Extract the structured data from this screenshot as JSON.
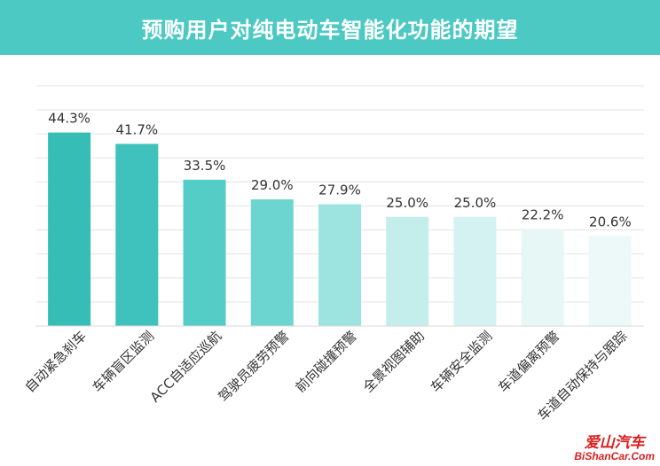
{
  "title": "预购用户对纯电动车智能化功能的期望",
  "watermark": {
    "cn": "爱山汽车",
    "en": "BiShanCar.Com"
  },
  "chart_data": {
    "type": "bar",
    "categories": [
      "自动紧急刹车",
      "车辆盲区监测",
      "ACC自适应巡航",
      "驾驶员疲劳预警",
      "前向碰撞预警",
      "全景视图辅助",
      "车辆安全监测",
      "车道偏离预警",
      "车道自动保持与跟踪"
    ],
    "values": [
      44.3,
      41.7,
      33.5,
      29.0,
      27.9,
      25.0,
      25.0,
      22.2,
      20.6
    ],
    "data_labels": [
      "44.3%",
      "41.7%",
      "33.5%",
      "29.0%",
      "27.9%",
      "25.0%",
      "25.0%",
      "22.2%",
      "20.6%"
    ],
    "colors": [
      "#35bdb6",
      "#3ec2bb",
      "#55cdc7",
      "#6cd5cf",
      "#9de3df",
      "#c4eeec",
      "#d4f2f1",
      "#e6f7f6",
      "#edf9f9"
    ],
    "ylim": [
      0,
      50
    ],
    "grid": true,
    "legend": "none"
  }
}
